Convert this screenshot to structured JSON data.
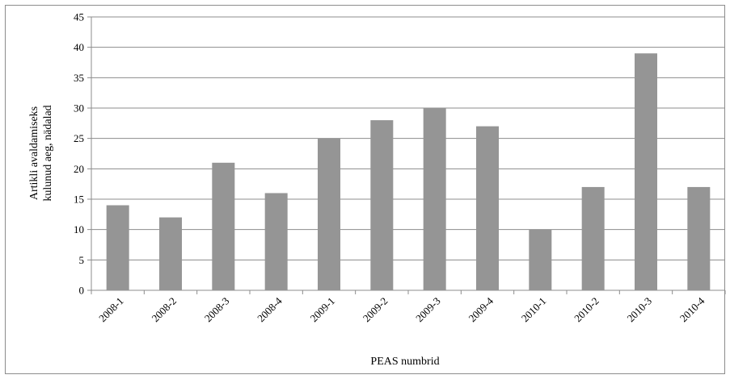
{
  "chart_data": {
    "type": "bar",
    "title": "",
    "categories": [
      "2008-1",
      "2008-2",
      "2008-3",
      "2008-4",
      "2009-1",
      "2009-2",
      "2009-3",
      "2009-4",
      "2010-1",
      "2010-2",
      "2010-3",
      "2010-4"
    ],
    "values": [
      14,
      12,
      21,
      16,
      25,
      28,
      30,
      27,
      10,
      17,
      39,
      17
    ],
    "xlabel": "PEAS numbrid",
    "ylabel_lines": [
      "Artikli avaldamiseks",
      "kulunud aeg, nädalad"
    ],
    "ylim": [
      0,
      45
    ],
    "yticks": [
      0,
      5,
      10,
      15,
      20,
      25,
      30,
      35,
      40,
      45
    ],
    "grid": "horizontal",
    "legend": "none",
    "bar_color": "#959595",
    "grid_color": "#8c8c8c"
  }
}
